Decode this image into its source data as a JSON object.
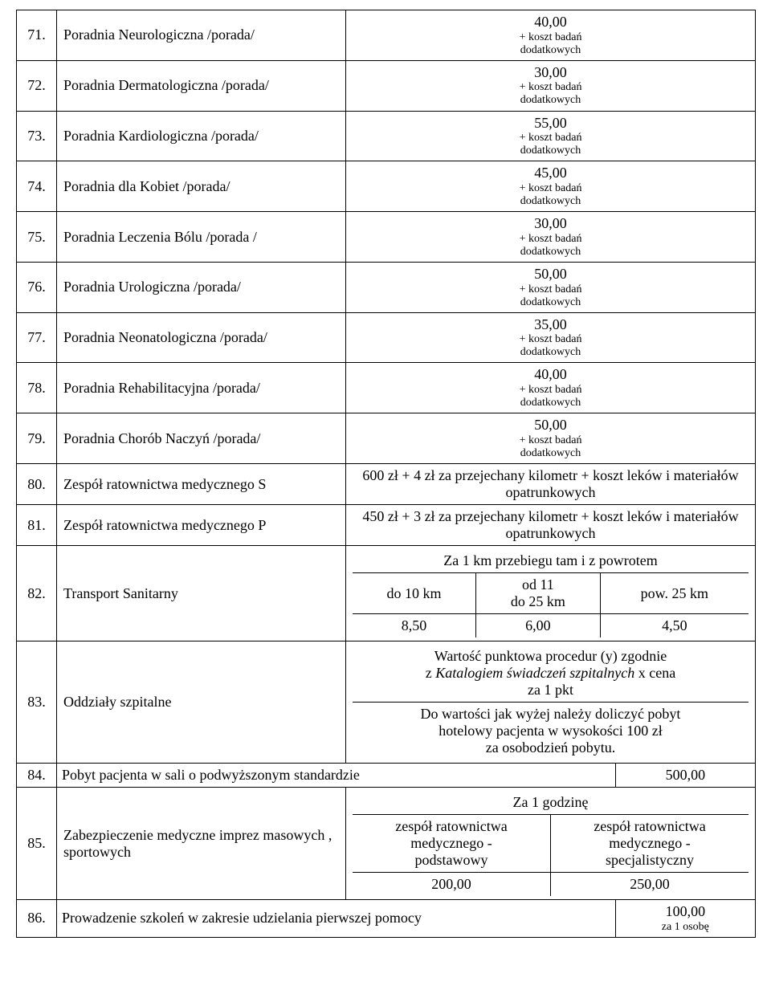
{
  "rows": [
    {
      "num": "71.",
      "name": "Poradnia Neurologiczna /porada/",
      "price": "40,00",
      "note1": "+ koszt badań",
      "note2": "dodatkowych"
    },
    {
      "num": "72.",
      "name": "Poradnia Dermatologiczna /porada/",
      "price": "30,00",
      "note1": "+ koszt badań",
      "note2": "dodatkowych"
    },
    {
      "num": "73.",
      "name": "Poradnia Kardiologiczna /porada/",
      "price": "55,00",
      "note1": "+ koszt badań",
      "note2": "dodatkowych"
    },
    {
      "num": "74.",
      "name": "Poradnia dla Kobiet /porada/",
      "price": "45,00",
      "note1": "+ koszt badań",
      "note2": "dodatkowych"
    },
    {
      "num": "75.",
      "name": "Poradnia Leczenia Bólu /porada /",
      "price": "30,00",
      "note1": "+ koszt badań",
      "note2": "dodatkowych"
    },
    {
      "num": "76.",
      "name": "Poradnia Urologiczna /porada/",
      "price": "50,00",
      "note1": "+ koszt badań",
      "note2": "dodatkowych"
    },
    {
      "num": "77.",
      "name": "Poradnia Neonatologiczna /porada/",
      "price": "35,00",
      "note1": "+ koszt badań",
      "note2": "dodatkowych"
    },
    {
      "num": "78.",
      "name": "Poradnia Rehabilitacyjna /porada/",
      "price": "40,00",
      "note1": "+ koszt badań",
      "note2": "dodatkowych"
    },
    {
      "num": "79.",
      "name": "Poradnia Chorób Naczyń /porada/",
      "price": "50,00",
      "note1": "+ koszt badań",
      "note2": "dodatkowych"
    }
  ],
  "row80": {
    "num": "80.",
    "name": "Zespół ratownictwa medycznego S",
    "desc": "600 zł + 4 zł za przejechany kilometr + koszt leków i materiałów opatrunkowych"
  },
  "row81": {
    "num": "81.",
    "name": "Zespół ratownictwa medycznego P",
    "desc": "450 zł + 3 zł za przejechany kilometr + koszt leków i materiałów opatrunkowych"
  },
  "row82": {
    "num": "82.",
    "name": "Transport Sanitarny",
    "header": "Za 1 km przebiegu tam i z powrotem",
    "cols": [
      "do 10 km",
      "od 11\ndo 25 km",
      "pow. 25 km"
    ],
    "vals": [
      "8,50",
      "6,00",
      "4,50"
    ]
  },
  "row83": {
    "num": "83.",
    "name": "Oddziały szpitalne",
    "line1a": "Wartość punktowa procedur (y) zgodnie",
    "line1b_pre": "z ",
    "line1b_italic": "Katalogiem świadczeń szpitalnych",
    "line1b_post": " x cena",
    "line1c": "za 1 pkt",
    "line2a": "Do wartości jak wyżej należy doliczyć pobyt",
    "line2b": "hotelowy pacjenta w wysokości 100 zł",
    "line2c": "za osobodzień pobytu."
  },
  "row84": {
    "num": "84.",
    "name": "Pobyt pacjenta w sali o podwyższonym standardzie",
    "price": "500,00"
  },
  "row85": {
    "num": "85.",
    "name": "Zabezpieczenie medyczne imprez masowych , sportowych",
    "header": "Za 1 godzinę",
    "col1a": "zespół ratownictwa",
    "col1b": "medycznego -",
    "col1c": "podstawowy",
    "col2a": "zespół ratownictwa",
    "col2b": "medycznego -",
    "col2c": "specjalistyczny",
    "v1": "200,00",
    "v2": "250,00"
  },
  "row86": {
    "num": "86.",
    "name": "Prowadzenie szkoleń w zakresie udzielania pierwszej pomocy",
    "price": "100,00",
    "note": "za 1 osobę"
  }
}
